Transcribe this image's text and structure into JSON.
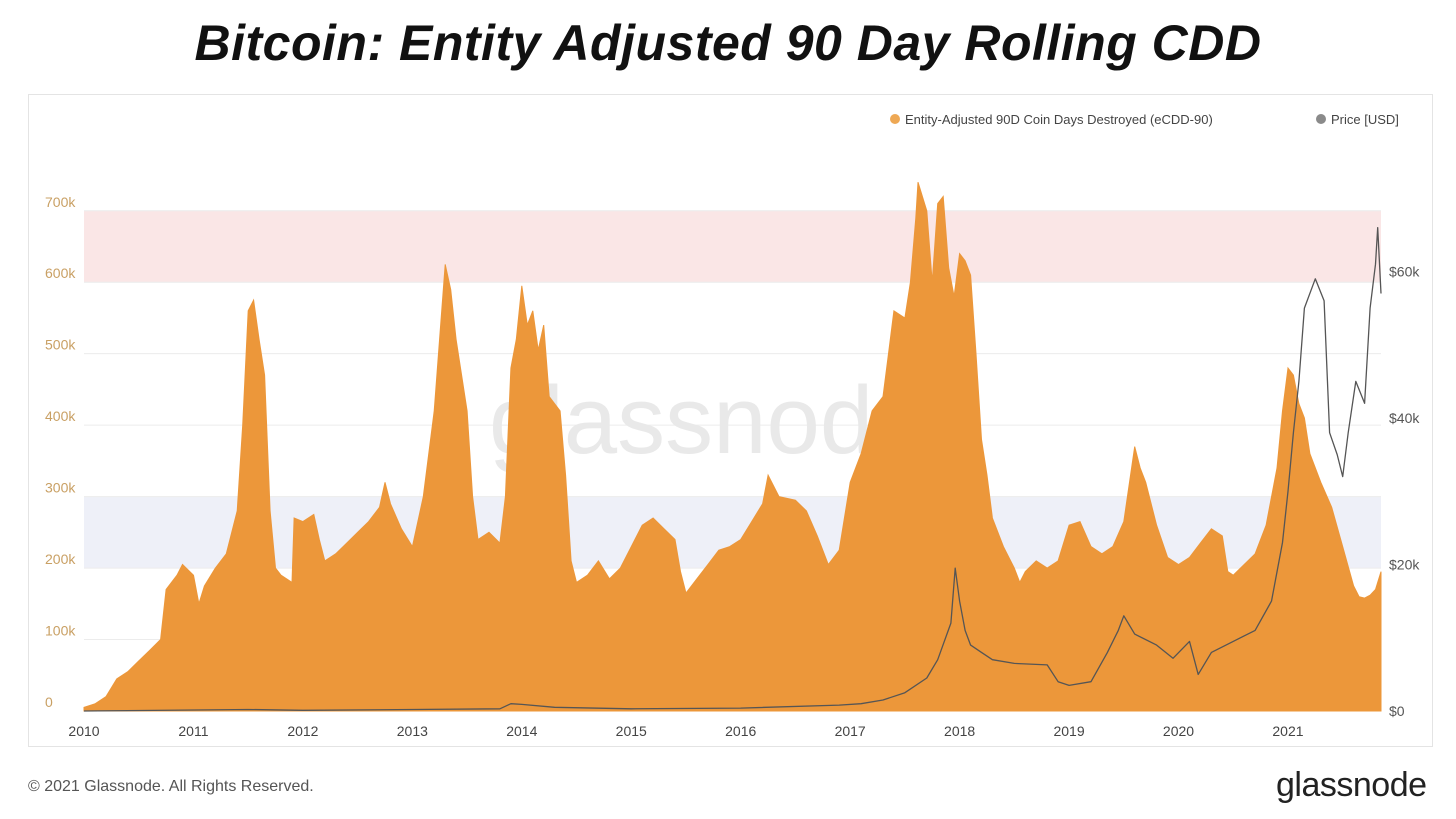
{
  "title": "Bitcoin: Entity Adjusted 90 Day Rolling CDD",
  "footer": {
    "copyright": "© 2021 Glassnode. All Rights Reserved.",
    "brand": "glassnode"
  },
  "watermark": "glassnode",
  "colors": {
    "ecdd_fill": "#ec973a",
    "ecdd_legend": "#eea854",
    "price_line": "#555555",
    "price_legend": "#8a8a8a",
    "high_band": "#fae6e6",
    "low_band": "#eef0f8",
    "grid": "#ececec"
  },
  "chart_data": {
    "type": "area",
    "title": "Bitcoin: Entity Adjusted 90 Day Rolling CDD",
    "x_range": [
      2010,
      2021.85
    ],
    "x_ticks": [
      "2010",
      "2011",
      "2012",
      "2013",
      "2014",
      "2015",
      "2016",
      "2017",
      "2018",
      "2019",
      "2020",
      "2021"
    ],
    "left_axis": {
      "label": "Entity-Adjusted 90D Coin Days Destroyed (eCDD-90)",
      "range": [
        0,
        820000
      ],
      "ticks": [
        {
          "value": 0,
          "label": "0"
        },
        {
          "value": 100000,
          "label": "100k"
        },
        {
          "value": 200000,
          "label": "200k"
        },
        {
          "value": 300000,
          "label": "300k"
        },
        {
          "value": 400000,
          "label": "400k"
        },
        {
          "value": 500000,
          "label": "500k"
        },
        {
          "value": 600000,
          "label": "600k"
        },
        {
          "value": 700000,
          "label": "700k"
        }
      ]
    },
    "right_axis": {
      "label": "Price [USD]",
      "range": [
        0,
        80000
      ],
      "ticks": [
        {
          "value": 0,
          "label": "$0"
        },
        {
          "value": 20000,
          "label": "$20k"
        },
        {
          "value": 40000,
          "label": "$40k"
        },
        {
          "value": 60000,
          "label": "$60k"
        }
      ]
    },
    "bands": [
      {
        "name": "high-band",
        "from": 600000,
        "to": 700000
      },
      {
        "name": "low-band",
        "from": 200000,
        "to": 300000
      }
    ],
    "legend": {
      "placement": "top-right",
      "entries": [
        "Entity-Adjusted 90D Coin Days Destroyed (eCDD-90)",
        "Price [USD]"
      ]
    },
    "series": [
      {
        "name": "Entity-Adjusted 90D Coin Days Destroyed (eCDD-90)",
        "axis": "left",
        "kind": "area",
        "points": [
          [
            2010.0,
            5000
          ],
          [
            2010.1,
            10000
          ],
          [
            2010.2,
            20000
          ],
          [
            2010.3,
            45000
          ],
          [
            2010.4,
            55000
          ],
          [
            2010.5,
            70000
          ],
          [
            2010.6,
            85000
          ],
          [
            2010.7,
            100000
          ],
          [
            2010.75,
            170000
          ],
          [
            2010.85,
            190000
          ],
          [
            2010.9,
            205000
          ],
          [
            2011.0,
            190000
          ],
          [
            2011.05,
            150000
          ],
          [
            2011.1,
            175000
          ],
          [
            2011.2,
            200000
          ],
          [
            2011.3,
            220000
          ],
          [
            2011.4,
            280000
          ],
          [
            2011.45,
            400000
          ],
          [
            2011.5,
            560000
          ],
          [
            2011.55,
            575000
          ],
          [
            2011.6,
            520000
          ],
          [
            2011.65,
            470000
          ],
          [
            2011.7,
            280000
          ],
          [
            2011.75,
            200000
          ],
          [
            2011.8,
            190000
          ],
          [
            2011.9,
            180000
          ],
          [
            2011.92,
            270000
          ],
          [
            2012.0,
            265000
          ],
          [
            2012.1,
            275000
          ],
          [
            2012.15,
            240000
          ],
          [
            2012.2,
            210000
          ],
          [
            2012.3,
            220000
          ],
          [
            2012.4,
            235000
          ],
          [
            2012.5,
            250000
          ],
          [
            2012.6,
            265000
          ],
          [
            2012.7,
            285000
          ],
          [
            2012.75,
            320000
          ],
          [
            2012.8,
            290000
          ],
          [
            2012.9,
            255000
          ],
          [
            2013.0,
            230000
          ],
          [
            2013.1,
            300000
          ],
          [
            2013.2,
            420000
          ],
          [
            2013.3,
            625000
          ],
          [
            2013.35,
            590000
          ],
          [
            2013.4,
            520000
          ],
          [
            2013.5,
            420000
          ],
          [
            2013.55,
            300000
          ],
          [
            2013.6,
            240000
          ],
          [
            2013.7,
            250000
          ],
          [
            2013.8,
            235000
          ],
          [
            2013.85,
            300000
          ],
          [
            2013.9,
            480000
          ],
          [
            2013.95,
            520000
          ],
          [
            2014.0,
            595000
          ],
          [
            2014.05,
            540000
          ],
          [
            2014.1,
            560000
          ],
          [
            2014.15,
            505000
          ],
          [
            2014.2,
            540000
          ],
          [
            2014.25,
            440000
          ],
          [
            2014.3,
            430000
          ],
          [
            2014.35,
            420000
          ],
          [
            2014.4,
            330000
          ],
          [
            2014.45,
            210000
          ],
          [
            2014.5,
            180000
          ],
          [
            2014.6,
            190000
          ],
          [
            2014.7,
            210000
          ],
          [
            2014.8,
            185000
          ],
          [
            2014.9,
            200000
          ],
          [
            2015.0,
            230000
          ],
          [
            2015.1,
            260000
          ],
          [
            2015.2,
            270000
          ],
          [
            2015.3,
            255000
          ],
          [
            2015.4,
            240000
          ],
          [
            2015.45,
            195000
          ],
          [
            2015.5,
            165000
          ],
          [
            2015.6,
            185000
          ],
          [
            2015.7,
            205000
          ],
          [
            2015.8,
            225000
          ],
          [
            2015.9,
            230000
          ],
          [
            2016.0,
            240000
          ],
          [
            2016.1,
            265000
          ],
          [
            2016.2,
            290000
          ],
          [
            2016.25,
            330000
          ],
          [
            2016.35,
            300000
          ],
          [
            2016.5,
            295000
          ],
          [
            2016.6,
            280000
          ],
          [
            2016.7,
            245000
          ],
          [
            2016.8,
            205000
          ],
          [
            2016.9,
            225000
          ],
          [
            2017.0,
            320000
          ],
          [
            2017.1,
            360000
          ],
          [
            2017.2,
            420000
          ],
          [
            2017.3,
            440000
          ],
          [
            2017.35,
            500000
          ],
          [
            2017.4,
            560000
          ],
          [
            2017.5,
            550000
          ],
          [
            2017.55,
            600000
          ],
          [
            2017.6,
            690000
          ],
          [
            2017.62,
            740000
          ],
          [
            2017.7,
            700000
          ],
          [
            2017.75,
            600000
          ],
          [
            2017.8,
            710000
          ],
          [
            2017.85,
            720000
          ],
          [
            2017.9,
            620000
          ],
          [
            2017.95,
            580000
          ],
          [
            2018.0,
            640000
          ],
          [
            2018.05,
            630000
          ],
          [
            2018.1,
            610000
          ],
          [
            2018.15,
            500000
          ],
          [
            2018.2,
            380000
          ],
          [
            2018.25,
            330000
          ],
          [
            2018.3,
            270000
          ],
          [
            2018.4,
            230000
          ],
          [
            2018.5,
            200000
          ],
          [
            2018.55,
            180000
          ],
          [
            2018.6,
            195000
          ],
          [
            2018.7,
            210000
          ],
          [
            2018.8,
            200000
          ],
          [
            2018.9,
            210000
          ],
          [
            2019.0,
            260000
          ],
          [
            2019.1,
            265000
          ],
          [
            2019.2,
            230000
          ],
          [
            2019.3,
            220000
          ],
          [
            2019.4,
            230000
          ],
          [
            2019.5,
            265000
          ],
          [
            2019.6,
            370000
          ],
          [
            2019.65,
            340000
          ],
          [
            2019.7,
            320000
          ],
          [
            2019.8,
            260000
          ],
          [
            2019.9,
            215000
          ],
          [
            2020.0,
            205000
          ],
          [
            2020.1,
            215000
          ],
          [
            2020.2,
            235000
          ],
          [
            2020.3,
            255000
          ],
          [
            2020.4,
            245000
          ],
          [
            2020.45,
            195000
          ],
          [
            2020.5,
            190000
          ],
          [
            2020.6,
            205000
          ],
          [
            2020.7,
            220000
          ],
          [
            2020.8,
            260000
          ],
          [
            2020.9,
            340000
          ],
          [
            2020.95,
            420000
          ],
          [
            2021.0,
            480000
          ],
          [
            2021.05,
            470000
          ],
          [
            2021.1,
            430000
          ],
          [
            2021.15,
            410000
          ],
          [
            2021.2,
            360000
          ],
          [
            2021.3,
            320000
          ],
          [
            2021.4,
            285000
          ],
          [
            2021.5,
            230000
          ],
          [
            2021.6,
            175000
          ],
          [
            2021.65,
            160000
          ],
          [
            2021.7,
            158000
          ],
          [
            2021.75,
            162000
          ],
          [
            2021.8,
            170000
          ],
          [
            2021.85,
            195000
          ]
        ]
      },
      {
        "name": "Price [USD]",
        "axis": "right",
        "kind": "line",
        "points": [
          [
            2010.0,
            0
          ],
          [
            2011.5,
            200
          ],
          [
            2012.0,
            100
          ],
          [
            2013.0,
            200
          ],
          [
            2013.8,
            300
          ],
          [
            2013.9,
            1000
          ],
          [
            2014.0,
            900
          ],
          [
            2014.3,
            500
          ],
          [
            2015.0,
            300
          ],
          [
            2016.0,
            400
          ],
          [
            2016.9,
            800
          ],
          [
            2017.1,
            1000
          ],
          [
            2017.3,
            1500
          ],
          [
            2017.5,
            2500
          ],
          [
            2017.7,
            4500
          ],
          [
            2017.8,
            7000
          ],
          [
            2017.92,
            12000
          ],
          [
            2017.96,
            19500
          ],
          [
            2018.0,
            15000
          ],
          [
            2018.05,
            11000
          ],
          [
            2018.1,
            9000
          ],
          [
            2018.2,
            8000
          ],
          [
            2018.3,
            7000
          ],
          [
            2018.5,
            6500
          ],
          [
            2018.8,
            6300
          ],
          [
            2018.9,
            4000
          ],
          [
            2019.0,
            3500
          ],
          [
            2019.2,
            4000
          ],
          [
            2019.35,
            8000
          ],
          [
            2019.45,
            11000
          ],
          [
            2019.5,
            13000
          ],
          [
            2019.6,
            10500
          ],
          [
            2019.8,
            9000
          ],
          [
            2019.95,
            7200
          ],
          [
            2020.1,
            9500
          ],
          [
            2020.18,
            5000
          ],
          [
            2020.3,
            8000
          ],
          [
            2020.5,
            9500
          ],
          [
            2020.7,
            11000
          ],
          [
            2020.85,
            15000
          ],
          [
            2020.95,
            23000
          ],
          [
            2021.0,
            30000
          ],
          [
            2021.05,
            38000
          ],
          [
            2021.1,
            45000
          ],
          [
            2021.15,
            55000
          ],
          [
            2021.25,
            59000
          ],
          [
            2021.33,
            56000
          ],
          [
            2021.38,
            38000
          ],
          [
            2021.45,
            35000
          ],
          [
            2021.5,
            32000
          ],
          [
            2021.55,
            38000
          ],
          [
            2021.62,
            45000
          ],
          [
            2021.7,
            42000
          ],
          [
            2021.75,
            55000
          ],
          [
            2021.8,
            61000
          ],
          [
            2021.82,
            66000
          ],
          [
            2021.85,
            57000
          ]
        ]
      }
    ]
  }
}
